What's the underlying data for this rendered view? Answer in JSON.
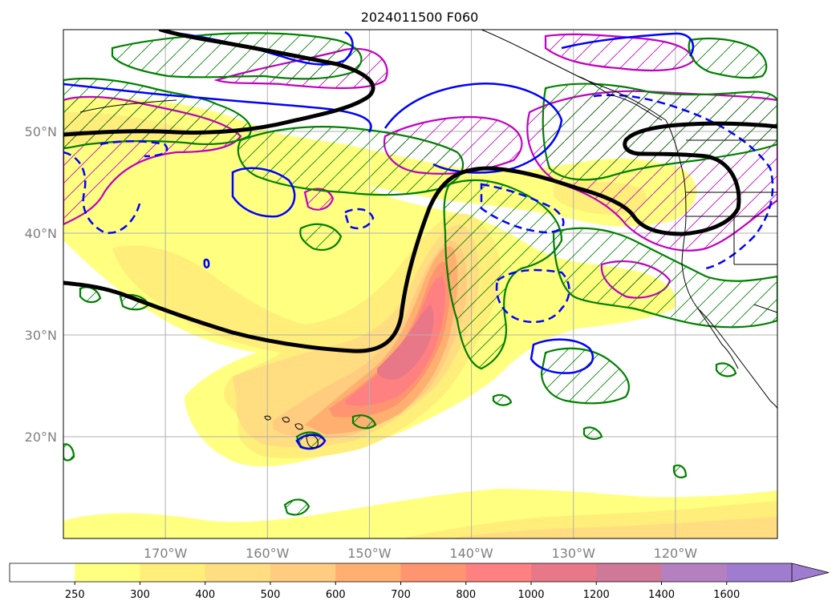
{
  "title": "2024011500 F060",
  "map": {
    "lat_labels": [
      {
        "lat": 50,
        "text": "50°N"
      },
      {
        "lat": 40,
        "text": "40°N"
      },
      {
        "lat": 30,
        "text": "30°N"
      },
      {
        "lat": 20,
        "text": "20°N"
      }
    ],
    "lon_labels": [
      {
        "lon": -170,
        "text": "170°W"
      },
      {
        "lon": -160,
        "text": "160°W"
      },
      {
        "lon": -150,
        "text": "150°W"
      },
      {
        "lon": -140,
        "text": "140°W"
      },
      {
        "lon": -130,
        "text": "130°W"
      },
      {
        "lon": -120,
        "text": "120°W"
      }
    ],
    "extent": {
      "lon_min": -180,
      "lon_max": -110,
      "lat_min": 10,
      "lat_max": 60
    },
    "gridlines": true
  },
  "colorbar": {
    "levels": [
      "250",
      "300",
      "400",
      "500",
      "600",
      "700",
      "800",
      "1000",
      "1200",
      "1400",
      "1600"
    ],
    "colors": [
      "#ffffff",
      "#ffff80",
      "#ffee7a",
      "#ffdd80",
      "#ffcc80",
      "#ffb070",
      "#ff9470",
      "#ff8080",
      "#e87888",
      "#d07898",
      "#b480c0",
      "#a07cd0"
    ],
    "extend": "max"
  },
  "colors": {
    "jet_contour": "#000000",
    "green_hatch": "#008000",
    "magenta_hatch": "#c000c0",
    "blue_contour": "#0000ff",
    "gridline": "#b0b0b0",
    "coastline": "#000000"
  }
}
